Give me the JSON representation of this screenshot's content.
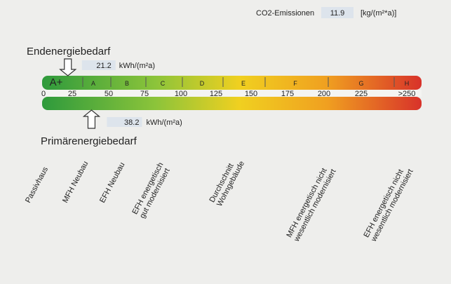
{
  "co2": {
    "label": "CO2-Emissionen",
    "value": "11.9",
    "unit": "[kg/(m²*a)]"
  },
  "end_energy": {
    "label": "Endenergiebedarf",
    "value": 21.2,
    "unit": "kWh/(m²a)"
  },
  "primary_energy": {
    "label": "Primärenergiebedarf",
    "value": 38.2,
    "unit": "kWh/(m²a)"
  },
  "classes": [
    "A+",
    "A",
    "B",
    "C",
    "D",
    "E",
    "F",
    "G",
    "H"
  ],
  "ticks": [
    0,
    25,
    50,
    75,
    100,
    125,
    150,
    175,
    200,
    225,
    {
      "value": 250,
      "label": ">250"
    }
  ],
  "building_types": [
    [
      "Passivhaus"
    ],
    [
      "MFH Neubau"
    ],
    [
      "EFH Neubau"
    ],
    [
      "EFH energetisch",
      "gut modernisiert"
    ],
    [
      "Durchschnitt",
      "Wohngebäude"
    ],
    [
      "MFH energetisch nicht",
      "wesentlich modernisiert"
    ],
    [
      "EFH energetisch nicht",
      "wesentlich modernisiert"
    ]
  ]
}
